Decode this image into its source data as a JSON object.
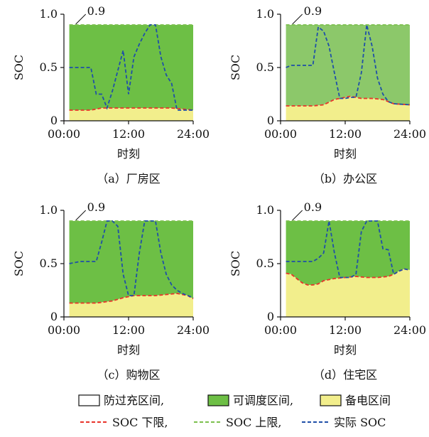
{
  "chart_data": [
    {
      "type": "area",
      "caption": "（a）厂房区",
      "xlabel": "时刻",
      "ylabel": "SOC",
      "xticks": [
        "00:00",
        "12:00",
        "24:00"
      ],
      "yticks": [
        "0",
        "0.5",
        "1.0"
      ],
      "xlim": [
        0,
        24
      ],
      "ylim": [
        0,
        1.0
      ],
      "annotation": "0.9",
      "upper_limit": 0.9,
      "lower_limit": {
        "x": [
          1,
          3,
          5,
          6,
          7,
          9,
          12,
          15,
          18,
          20,
          22,
          24
        ],
        "y": [
          0.1,
          0.1,
          0.1,
          0.11,
          0.12,
          0.12,
          0.12,
          0.12,
          0.12,
          0.12,
          0.11,
          0.1
        ]
      },
      "actual_soc": {
        "x": [
          1,
          5,
          6,
          7,
          8,
          9,
          11,
          12,
          13,
          14,
          15,
          16,
          17,
          18,
          19,
          20,
          21,
          22,
          23,
          24
        ],
        "y": [
          0.5,
          0.5,
          0.25,
          0.25,
          0.12,
          0.28,
          0.66,
          0.25,
          0.6,
          0.72,
          0.82,
          0.9,
          0.9,
          0.6,
          0.43,
          0.35,
          0.1,
          0.1,
          0.1,
          0.1
        ]
      }
    },
    {
      "type": "area",
      "caption": "（b）办公区",
      "xlabel": "时刻",
      "ylabel": "SOC",
      "xticks": [
        "00:00",
        "12:00",
        "24:00"
      ],
      "yticks": [
        "0",
        "0.5",
        "1.0"
      ],
      "xlim": [
        0,
        24
      ],
      "ylim": [
        0,
        1.0
      ],
      "annotation": "0.9",
      "upper_limit": 0.9,
      "lower_limit": {
        "x": [
          1,
          3,
          6,
          8,
          10,
          11,
          12,
          13,
          14,
          15,
          17,
          19,
          21,
          24
        ],
        "y": [
          0.14,
          0.14,
          0.14,
          0.15,
          0.2,
          0.21,
          0.22,
          0.23,
          0.22,
          0.21,
          0.21,
          0.2,
          0.16,
          0.15
        ]
      },
      "actual_soc": {
        "x": [
          1,
          2,
          6,
          7,
          8,
          9,
          10,
          11,
          12,
          13,
          14,
          15,
          16,
          17,
          18,
          19,
          20,
          21,
          24
        ],
        "y": [
          0.5,
          0.52,
          0.52,
          0.88,
          0.84,
          0.7,
          0.45,
          0.21,
          0.21,
          0.22,
          0.22,
          0.45,
          0.9,
          0.7,
          0.4,
          0.25,
          0.18,
          0.16,
          0.15
        ]
      }
    },
    {
      "type": "area",
      "caption": "（c）购物区",
      "xlabel": "时刻",
      "ylabel": "SOC",
      "xticks": [
        "00:00",
        "12:00",
        "24:00"
      ],
      "yticks": [
        "0",
        "0.5",
        "1.0"
      ],
      "xlim": [
        0,
        24
      ],
      "ylim": [
        0,
        1.0
      ],
      "annotation": "0.9",
      "upper_limit": 0.9,
      "lower_limit": {
        "x": [
          1,
          3,
          6,
          9,
          11,
          13,
          15,
          17,
          19,
          21,
          23,
          24
        ],
        "y": [
          0.13,
          0.13,
          0.13,
          0.15,
          0.18,
          0.2,
          0.2,
          0.2,
          0.21,
          0.22,
          0.2,
          0.17
        ]
      },
      "actual_soc": {
        "x": [
          1,
          3,
          6,
          7,
          8,
          9,
          10,
          11,
          12,
          13,
          14,
          15,
          16,
          17,
          18,
          19,
          20,
          21,
          22,
          23,
          24
        ],
        "y": [
          0.5,
          0.52,
          0.52,
          0.7,
          0.9,
          0.9,
          0.85,
          0.4,
          0.2,
          0.2,
          0.6,
          0.9,
          0.9,
          0.9,
          0.6,
          0.4,
          0.3,
          0.25,
          0.22,
          0.2,
          0.18
        ]
      }
    },
    {
      "type": "area",
      "caption": "（d）住宅区",
      "xlabel": "时刻",
      "ylabel": "SOC",
      "xticks": [
        "00:00",
        "12:00",
        "24:00"
      ],
      "yticks": [
        "0",
        "0.5",
        "1.0"
      ],
      "xlim": [
        0,
        24
      ],
      "ylim": [
        0,
        1.0
      ],
      "annotation": "0.9",
      "upper_limit": 0.9,
      "lower_limit": {
        "x": [
          1,
          2,
          3,
          4,
          5,
          6,
          7,
          8,
          10,
          12,
          14,
          16,
          18,
          20,
          21,
          22,
          23,
          24
        ],
        "y": [
          0.41,
          0.4,
          0.36,
          0.32,
          0.3,
          0.3,
          0.31,
          0.34,
          0.36,
          0.37,
          0.38,
          0.37,
          0.37,
          0.38,
          0.4,
          0.43,
          0.45,
          0.44
        ]
      },
      "actual_soc": {
        "x": [
          1,
          4,
          6,
          7,
          8,
          9,
          10,
          11,
          12,
          13,
          14,
          15,
          16,
          17,
          18,
          19,
          20,
          21,
          22,
          23,
          24
        ],
        "y": [
          0.52,
          0.52,
          0.52,
          0.55,
          0.6,
          0.9,
          0.6,
          0.37,
          0.37,
          0.37,
          0.4,
          0.8,
          0.9,
          0.9,
          0.9,
          0.64,
          0.63,
          0.4,
          0.43,
          0.45,
          0.44
        ]
      }
    }
  ],
  "legend": {
    "row1": [
      {
        "label": "防过充区间,",
        "swatch": "none"
      },
      {
        "label": "可调度区间,",
        "swatch": "green"
      },
      {
        "label": "备电区间",
        "swatch": "yellow"
      }
    ],
    "row2": [
      {
        "label": "SOC 下限,",
        "line": "red"
      },
      {
        "label": "SOC 上限,",
        "line": "green"
      },
      {
        "label": "实际 SOC",
        "line": "blue"
      }
    ]
  },
  "colors": {
    "green_area": "#6dbf45",
    "green_area_b": "#8cc86a",
    "yellow_area": "#f2ee8c",
    "red_line": "#e8332a",
    "green_line": "#7cc04e",
    "blue_line": "#1f4fa8"
  }
}
